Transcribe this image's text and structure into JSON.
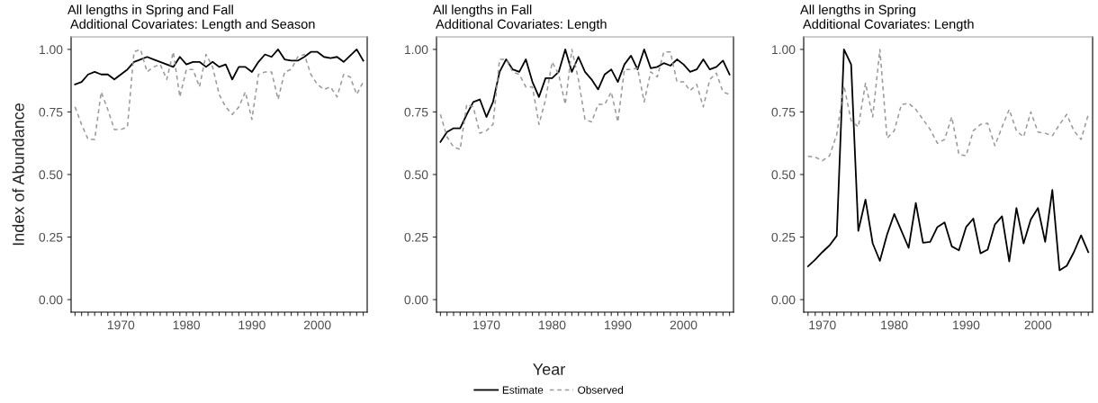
{
  "chart_data": [
    {
      "type": "line",
      "title": "All lengths in Spring and Fall",
      "subtitle": "Additional Covariates: Length and Season",
      "ylabel": "Index of Abundance",
      "legend": "bottom",
      "x": [
        1963,
        1964,
        1965,
        1966,
        1967,
        1968,
        1969,
        1970,
        1971,
        1972,
        1973,
        1974,
        1975,
        1976,
        1977,
        1978,
        1979,
        1980,
        1981,
        1982,
        1983,
        1984,
        1985,
        1986,
        1987,
        1988,
        1989,
        1990,
        1991,
        1992,
        1993,
        1994,
        1995,
        1996,
        1997,
        1998,
        1999,
        2000,
        2001,
        2002,
        2003,
        2004,
        2005,
        2006,
        2007
      ],
      "series": [
        {
          "name": "Estimate",
          "color": "#000000",
          "line_style": "solid",
          "values": [
            0.86,
            0.87,
            0.9,
            0.91,
            0.9,
            0.9,
            0.88,
            0.9,
            0.92,
            0.95,
            0.96,
            0.97,
            0.96,
            0.95,
            0.94,
            0.93,
            0.97,
            0.94,
            0.95,
            0.95,
            0.93,
            0.95,
            0.93,
            0.94,
            0.88,
            0.93,
            0.93,
            0.91,
            0.95,
            0.98,
            0.97,
            1.0,
            0.96,
            0.955,
            0.955,
            0.97,
            0.99,
            0.99,
            0.97,
            0.965,
            0.97,
            0.95,
            0.975,
            1.0,
            0.955
          ]
        },
        {
          "name": "Observed",
          "color": "#999999",
          "line_style": "dashed",
          "values": [
            0.77,
            0.7,
            0.64,
            0.64,
            0.83,
            0.76,
            0.68,
            0.68,
            0.69,
            0.99,
            1.0,
            0.91,
            0.93,
            0.94,
            0.88,
            0.99,
            0.81,
            0.92,
            0.92,
            0.85,
            0.98,
            0.93,
            0.82,
            0.77,
            0.74,
            0.77,
            0.83,
            0.72,
            0.9,
            0.91,
            0.91,
            0.8,
            0.91,
            0.92,
            0.97,
            0.98,
            0.9,
            0.86,
            0.84,
            0.85,
            0.81,
            0.9,
            0.89,
            0.82,
            0.87
          ]
        }
      ],
      "xlim": [
        1962.4,
        2007.6
      ],
      "ylim": [
        -0.05,
        1.05
      ],
      "yticks": [
        {
          "value": 0,
          "label": "0.00"
        },
        {
          "value": 0.25,
          "label": "0.25"
        },
        {
          "value": 0.5,
          "label": "0.50"
        },
        {
          "value": 0.75,
          "label": "0.75"
        },
        {
          "value": 1,
          "label": "1.00"
        }
      ],
      "xticks": [
        {
          "value": 1963,
          "label": null
        },
        {
          "value": 1964,
          "label": null
        },
        {
          "value": 1965,
          "label": null
        },
        {
          "value": 1966,
          "label": null
        },
        {
          "value": 1967,
          "label": null
        },
        {
          "value": 1968,
          "label": null
        },
        {
          "value": 1969,
          "label": null
        },
        1970,
        {
          "value": 1971,
          "label": null
        },
        {
          "value": 1972,
          "label": null
        },
        {
          "value": 1973,
          "label": null
        },
        {
          "value": 1974,
          "label": null
        },
        {
          "value": 1975,
          "label": null
        },
        {
          "value": 1976,
          "label": null
        },
        {
          "value": 1977,
          "label": null
        },
        {
          "value": 1978,
          "label": null
        },
        {
          "value": 1979,
          "label": null
        },
        1980,
        {
          "value": 1981,
          "label": null
        },
        {
          "value": 1982,
          "label": null
        },
        {
          "value": 1983,
          "label": null
        },
        {
          "value": 1984,
          "label": null
        },
        {
          "value": 1985,
          "label": null
        },
        {
          "value": 1986,
          "label": null
        },
        {
          "value": 1987,
          "label": null
        },
        {
          "value": 1988,
          "label": null
        },
        {
          "value": 1989,
          "label": null
        },
        1990,
        {
          "value": 1991,
          "label": null
        },
        {
          "value": 1992,
          "label": null
        },
        {
          "value": 1993,
          "label": null
        },
        {
          "value": 1994,
          "label": null
        },
        {
          "value": 1995,
          "label": null
        },
        {
          "value": 1996,
          "label": null
        },
        {
          "value": 1997,
          "label": null
        },
        {
          "value": 1998,
          "label": null
        },
        {
          "value": 1999,
          "label": null
        },
        2000,
        {
          "value": 2001,
          "label": null
        },
        {
          "value": 2002,
          "label": null
        },
        {
          "value": 2003,
          "label": null
        },
        {
          "value": 2004,
          "label": null
        },
        {
          "value": 2005,
          "label": null
        },
        {
          "value": 2006,
          "label": null
        },
        {
          "value": 2007,
          "label": null
        }
      ],
      "grid": false
    },
    {
      "type": "line",
      "title": "All lengths in Fall",
      "subtitle": "Additional Covariates: Length",
      "xlabel": "Year",
      "x": [
        1963,
        1964,
        1965,
        1966,
        1967,
        1968,
        1969,
        1970,
        1971,
        1972,
        1973,
        1974,
        1975,
        1976,
        1977,
        1978,
        1979,
        1980,
        1981,
        1982,
        1983,
        1984,
        1985,
        1986,
        1987,
        1988,
        1989,
        1990,
        1991,
        1992,
        1993,
        1994,
        1995,
        1996,
        1997,
        1998,
        1999,
        2000,
        2001,
        2002,
        2003,
        2004,
        2005,
        2006,
        2007
      ],
      "series": [
        {
          "color": "#000000",
          "line_style": "solid",
          "values": [
            0.63,
            0.67,
            0.685,
            0.685,
            0.74,
            0.79,
            0.8,
            0.73,
            0.79,
            0.91,
            0.96,
            0.92,
            0.91,
            0.96,
            0.87,
            0.81,
            0.885,
            0.885,
            0.91,
            1.0,
            0.91,
            0.97,
            0.91,
            0.88,
            0.84,
            0.9,
            0.92,
            0.87,
            0.94,
            0.975,
            0.92,
            1.0,
            0.925,
            0.93,
            0.945,
            0.935,
            0.96,
            0.94,
            0.91,
            0.92,
            0.96,
            0.92,
            0.93,
            0.955,
            0.9
          ]
        },
        {
          "color": "#999999",
          "line_style": "dashed",
          "values": [
            0.74,
            0.65,
            0.61,
            0.6,
            0.78,
            0.77,
            0.665,
            0.675,
            0.7,
            0.96,
            0.96,
            0.91,
            0.9,
            0.85,
            0.85,
            0.7,
            0.8,
            0.95,
            0.9,
            0.78,
            1.0,
            0.88,
            0.72,
            0.71,
            0.78,
            0.78,
            0.83,
            0.71,
            0.92,
            0.92,
            0.925,
            0.79,
            0.91,
            0.89,
            0.99,
            0.99,
            0.87,
            0.87,
            0.835,
            0.86,
            0.77,
            0.88,
            0.905,
            0.83,
            0.82
          ]
        }
      ],
      "xlim": [
        1962.4,
        2007.6
      ],
      "ylim": [
        -0.05,
        1.05
      ],
      "yticks": [
        {
          "value": 0,
          "label": "0.00"
        },
        {
          "value": 0.25,
          "label": "0.25"
        },
        {
          "value": 0.5,
          "label": "0.50"
        },
        {
          "value": 0.75,
          "label": "0.75"
        },
        {
          "value": 1,
          "label": "1.00"
        }
      ],
      "xticks": [
        {
          "value": 1963,
          "label": null
        },
        {
          "value": 1964,
          "label": null
        },
        {
          "value": 1965,
          "label": null
        },
        {
          "value": 1966,
          "label": null
        },
        {
          "value": 1967,
          "label": null
        },
        {
          "value": 1968,
          "label": null
        },
        {
          "value": 1969,
          "label": null
        },
        1970,
        {
          "value": 1971,
          "label": null
        },
        {
          "value": 1972,
          "label": null
        },
        {
          "value": 1973,
          "label": null
        },
        {
          "value": 1974,
          "label": null
        },
        {
          "value": 1975,
          "label": null
        },
        {
          "value": 1976,
          "label": null
        },
        {
          "value": 1977,
          "label": null
        },
        {
          "value": 1978,
          "label": null
        },
        {
          "value": 1979,
          "label": null
        },
        1980,
        {
          "value": 1981,
          "label": null
        },
        {
          "value": 1982,
          "label": null
        },
        {
          "value": 1983,
          "label": null
        },
        {
          "value": 1984,
          "label": null
        },
        {
          "value": 1985,
          "label": null
        },
        {
          "value": 1986,
          "label": null
        },
        {
          "value": 1987,
          "label": null
        },
        {
          "value": 1988,
          "label": null
        },
        {
          "value": 1989,
          "label": null
        },
        1990,
        {
          "value": 1991,
          "label": null
        },
        {
          "value": 1992,
          "label": null
        },
        {
          "value": 1993,
          "label": null
        },
        {
          "value": 1994,
          "label": null
        },
        {
          "value": 1995,
          "label": null
        },
        {
          "value": 1996,
          "label": null
        },
        {
          "value": 1997,
          "label": null
        },
        {
          "value": 1998,
          "label": null
        },
        {
          "value": 1999,
          "label": null
        },
        2000,
        {
          "value": 2001,
          "label": null
        },
        {
          "value": 2002,
          "label": null
        },
        {
          "value": 2003,
          "label": null
        },
        {
          "value": 2004,
          "label": null
        },
        {
          "value": 2005,
          "label": null
        },
        {
          "value": 2006,
          "label": null
        },
        {
          "value": 2007,
          "label": null
        }
      ],
      "grid": false
    },
    {
      "type": "line",
      "title": "All lengths in Spring",
      "subtitle": "Additional Covariates: Length",
      "x": [
        1968,
        1969,
        1970,
        1971,
        1972,
        1973,
        1974,
        1975,
        1976,
        1977,
        1978,
        1979,
        1980,
        1981,
        1982,
        1983,
        1984,
        1985,
        1986,
        1987,
        1988,
        1989,
        1990,
        1991,
        1992,
        1993,
        1994,
        1995,
        1996,
        1997,
        1998,
        1999,
        2000,
        2001,
        2002,
        2003,
        2004,
        2005,
        2006,
        2007
      ],
      "series": [
        {
          "color": "#000000",
          "line_style": "solid",
          "values": [
            0.133,
            0.16,
            0.19,
            0.217,
            0.255,
            1.0,
            0.94,
            0.275,
            0.4,
            0.225,
            0.155,
            0.26,
            0.342,
            0.275,
            0.207,
            0.386,
            0.227,
            0.231,
            0.29,
            0.309,
            0.213,
            0.197,
            0.29,
            0.324,
            0.185,
            0.2,
            0.3,
            0.333,
            0.153,
            0.366,
            0.225,
            0.32,
            0.366,
            0.231,
            0.438,
            0.117,
            0.135,
            0.19,
            0.257,
            0.19
          ]
        },
        {
          "color": "#999999",
          "line_style": "dashed",
          "values": [
            0.573,
            0.57,
            0.555,
            0.575,
            0.66,
            0.855,
            0.715,
            0.69,
            0.865,
            0.73,
            1.0,
            0.645,
            0.675,
            0.78,
            0.785,
            0.76,
            0.72,
            0.68,
            0.625,
            0.64,
            0.73,
            0.58,
            0.575,
            0.675,
            0.7,
            0.705,
            0.615,
            0.69,
            0.76,
            0.675,
            0.65,
            0.75,
            0.67,
            0.665,
            0.655,
            0.7,
            0.74,
            0.675,
            0.64,
            0.74
          ]
        }
      ],
      "xlim": [
        1967.4,
        2007.6
      ],
      "ylim": [
        -0.05,
        1.05
      ],
      "yticks": [
        {
          "value": 0,
          "label": "0.00"
        },
        {
          "value": 0.25,
          "label": "0.25"
        },
        {
          "value": 0.5,
          "label": "0.50"
        },
        {
          "value": 0.75,
          "label": "0.75"
        },
        {
          "value": 1,
          "label": "1.00"
        }
      ],
      "xticks": [
        {
          "value": 1968,
          "label": null
        },
        {
          "value": 1969,
          "label": null
        },
        1970,
        {
          "value": 1971,
          "label": null
        },
        {
          "value": 1972,
          "label": null
        },
        {
          "value": 1973,
          "label": null
        },
        {
          "value": 1974,
          "label": null
        },
        {
          "value": 1975,
          "label": null
        },
        {
          "value": 1976,
          "label": null
        },
        {
          "value": 1977,
          "label": null
        },
        {
          "value": 1978,
          "label": null
        },
        {
          "value": 1979,
          "label": null
        },
        1980,
        {
          "value": 1981,
          "label": null
        },
        {
          "value": 1982,
          "label": null
        },
        {
          "value": 1983,
          "label": null
        },
        {
          "value": 1984,
          "label": null
        },
        {
          "value": 1985,
          "label": null
        },
        {
          "value": 1986,
          "label": null
        },
        {
          "value": 1987,
          "label": null
        },
        {
          "value": 1988,
          "label": null
        },
        {
          "value": 1989,
          "label": null
        },
        1990,
        {
          "value": 1991,
          "label": null
        },
        {
          "value": 1992,
          "label": null
        },
        {
          "value": 1993,
          "label": null
        },
        {
          "value": 1994,
          "label": null
        },
        {
          "value": 1995,
          "label": null
        },
        {
          "value": 1996,
          "label": null
        },
        {
          "value": 1997,
          "label": null
        },
        {
          "value": 1998,
          "label": null
        },
        {
          "value": 1999,
          "label": null
        },
        2000,
        {
          "value": 2001,
          "label": null
        },
        {
          "value": 2002,
          "label": null
        },
        {
          "value": 2003,
          "label": null
        },
        {
          "value": 2004,
          "label": null
        },
        {
          "value": 2005,
          "label": null
        },
        {
          "value": 2006,
          "label": null
        },
        {
          "value": 2007,
          "label": null
        }
      ],
      "grid": false
    }
  ]
}
